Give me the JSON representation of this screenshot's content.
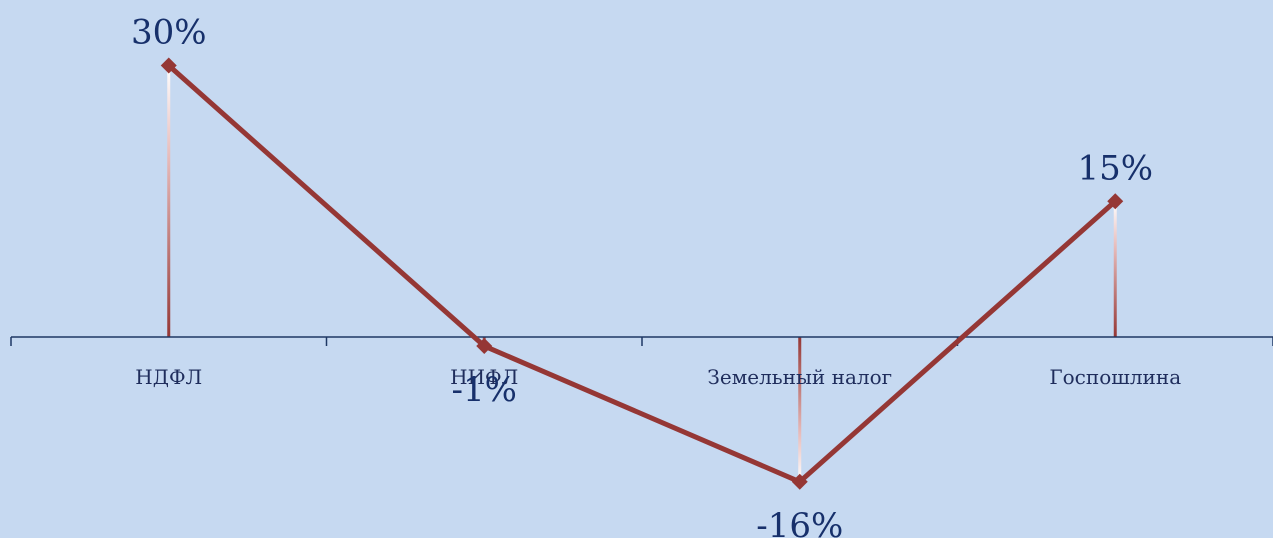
{
  "chart_data": {
    "type": "line",
    "categories": [
      "НДФЛ",
      "НИФЛ",
      "Земельный налог",
      "Госпошлина"
    ],
    "series": [
      {
        "values": [
          30,
          -1,
          -16,
          15
        ]
      }
    ],
    "data_labels": [
      "30%",
      "-1%",
      "-16%",
      "15%"
    ],
    "ylim": [
      -18,
      32
    ],
    "grid": false,
    "legend": "none",
    "colors": {
      "background": "#c6d9f1",
      "line": "#953735",
      "axis": "#1f3864",
      "text": "#17306b"
    }
  }
}
